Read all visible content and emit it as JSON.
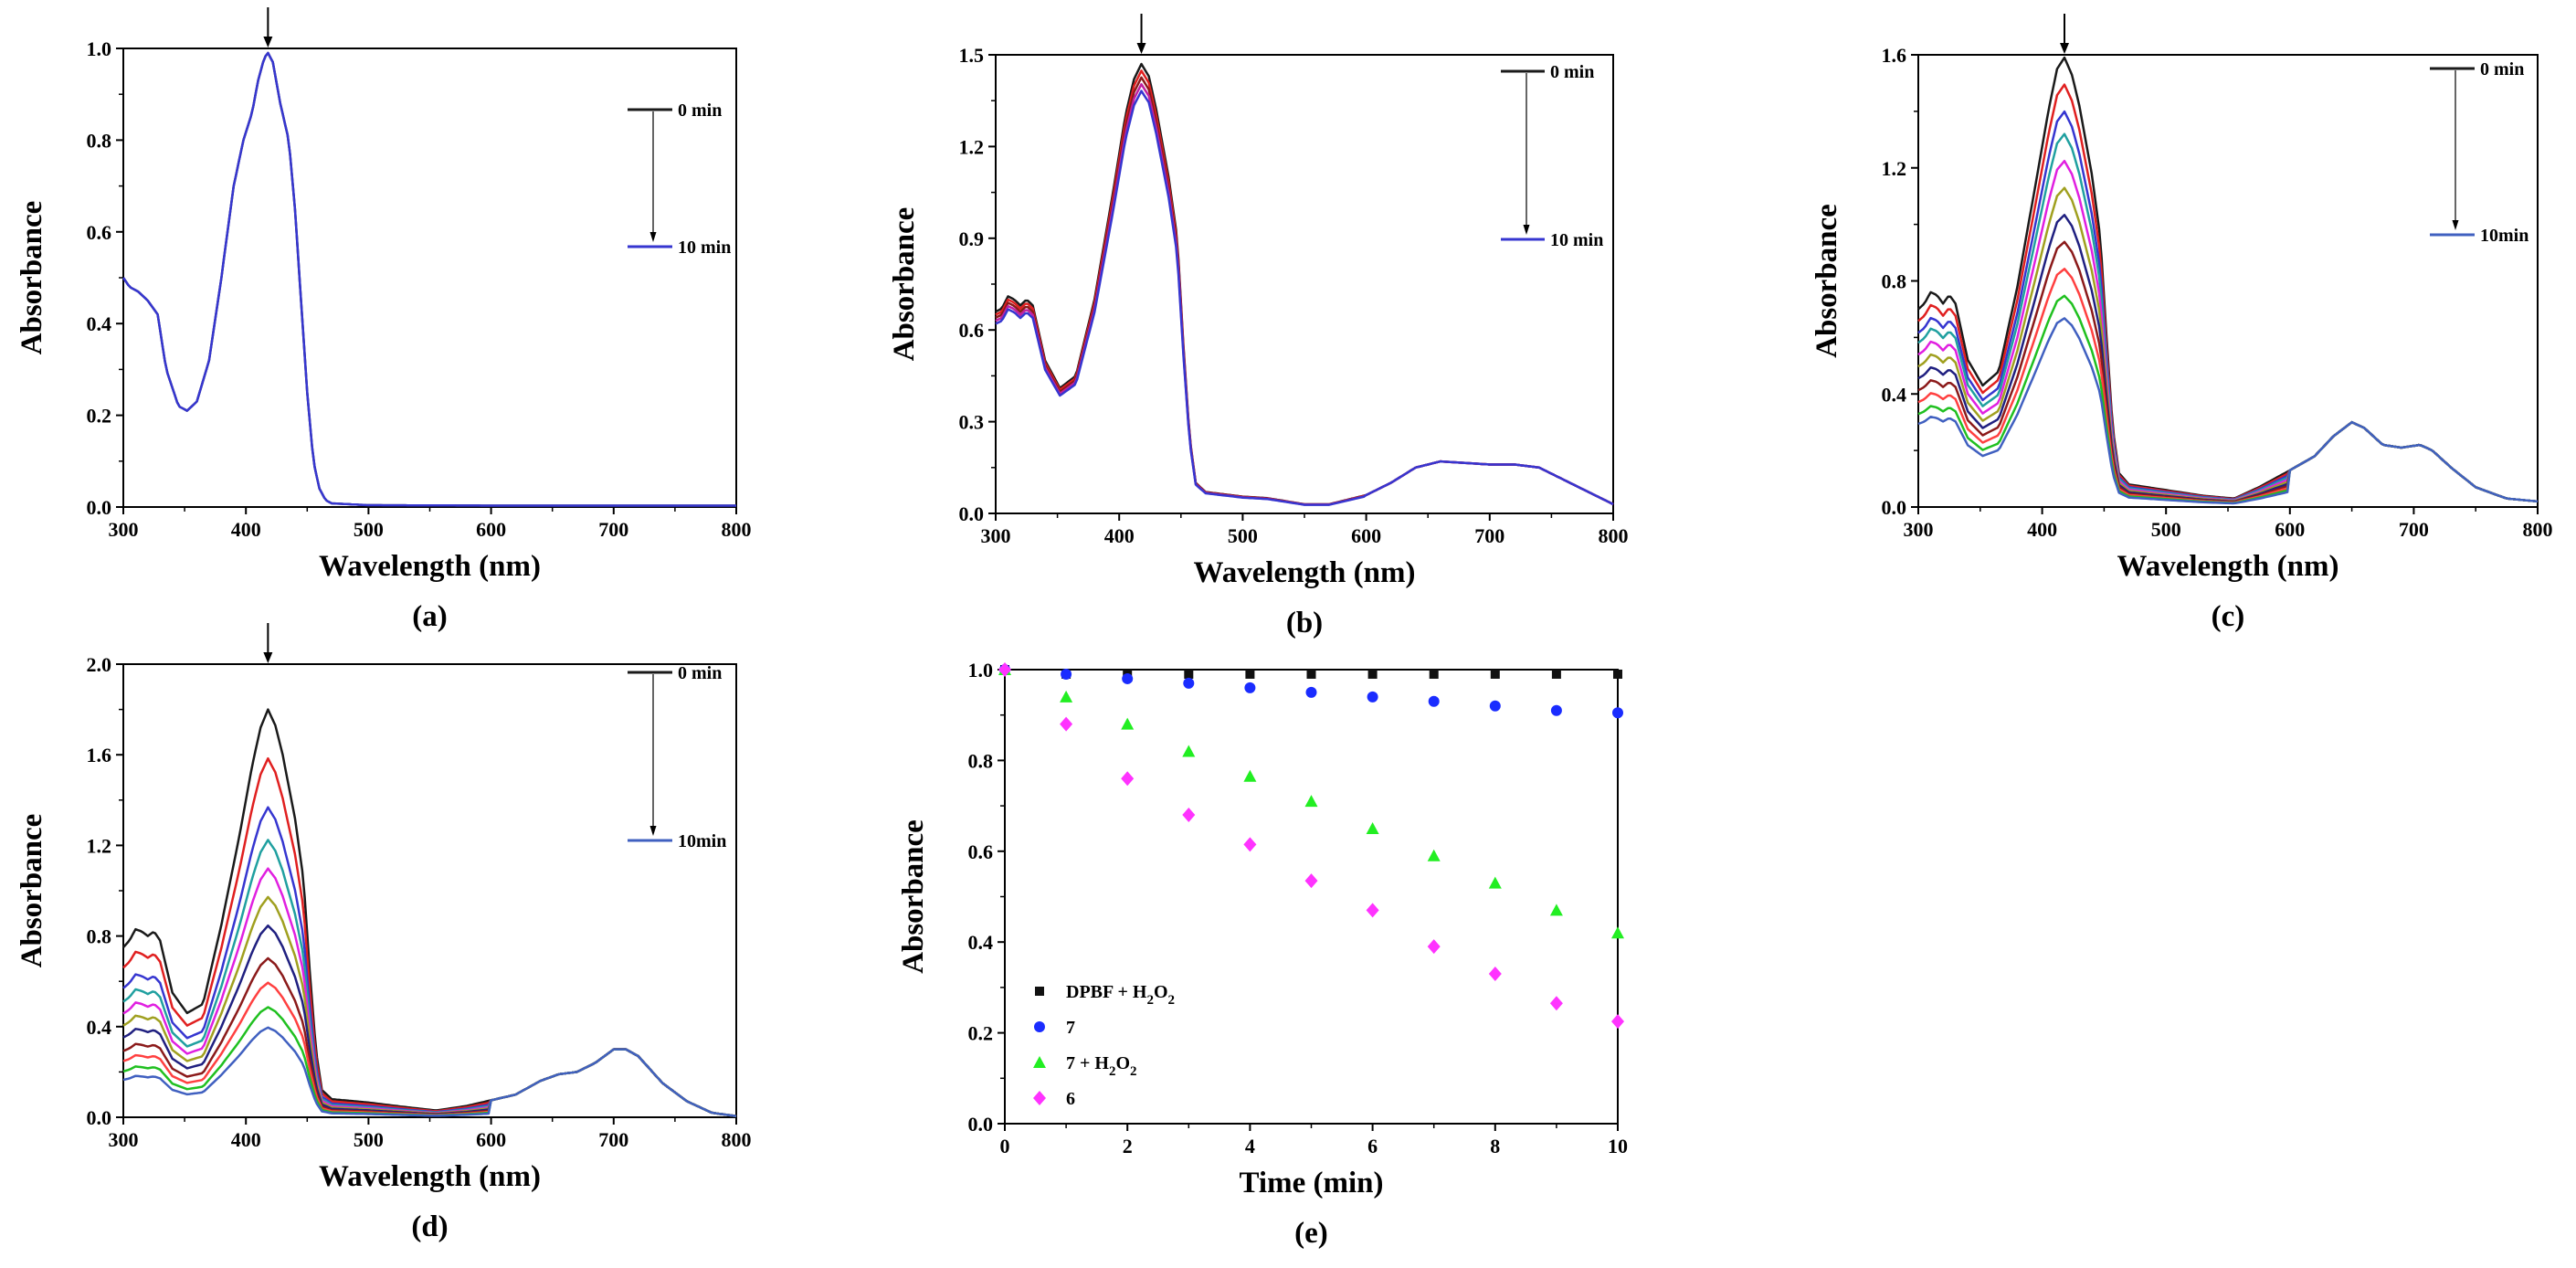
{
  "figure": {
    "panel_labels": [
      "(a)",
      "(b)",
      "(c)",
      "(d)",
      "(e)"
    ]
  },
  "chart_data": [
    {
      "id": "a",
      "type": "line",
      "panel_label": "(a)",
      "xlabel": "Wavelength (nm)",
      "ylabel": "Absorbance",
      "xlim": [
        300,
        800
      ],
      "ylim": [
        0,
        1.0
      ],
      "xticks": [
        300,
        400,
        500,
        600,
        700,
        800
      ],
      "yticks": [
        0.0,
        0.2,
        0.4,
        0.6,
        0.8,
        1.0
      ],
      "ytick_decimals": 1,
      "peak_arrow_x": 418,
      "legend": {
        "start_label": "0 min",
        "end_label": "10 min"
      },
      "series_colors": [
        "#1a1a1a",
        "#3636d0"
      ],
      "series_scales": [
        1.0,
        1.0
      ],
      "uv_profile": [
        [
          300,
          0.5
        ],
        [
          305,
          0.48
        ],
        [
          312,
          0.47
        ],
        [
          320,
          0.45
        ],
        [
          328,
          0.42
        ],
        [
          335,
          0.3
        ],
        [
          345,
          0.22
        ],
        [
          352,
          0.21
        ],
        [
          360,
          0.23
        ],
        [
          370,
          0.32
        ],
        [
          380,
          0.5
        ],
        [
          390,
          0.7
        ],
        [
          398,
          0.8
        ],
        [
          405,
          0.86
        ],
        [
          410,
          0.93
        ],
        [
          415,
          0.98
        ],
        [
          418,
          0.99
        ],
        [
          422,
          0.97
        ],
        [
          428,
          0.88
        ],
        [
          435,
          0.8
        ],
        [
          440,
          0.65
        ],
        [
          445,
          0.45
        ],
        [
          450,
          0.25
        ],
        [
          455,
          0.1
        ],
        [
          460,
          0.04
        ],
        [
          465,
          0.015
        ],
        [
          470,
          0.008
        ],
        [
          500,
          0.004
        ],
        [
          600,
          0.003
        ]
      ],
      "q_profile": [
        [
          600,
          0.003
        ],
        [
          650,
          0.003
        ],
        [
          700,
          0.003
        ],
        [
          800,
          0.003
        ]
      ]
    },
    {
      "id": "b",
      "type": "line",
      "panel_label": "(b)",
      "xlabel": "Wavelength (nm)",
      "ylabel": "Absorbance",
      "xlim": [
        300,
        800
      ],
      "ylim": [
        0,
        1.5
      ],
      "xticks": [
        300,
        400,
        500,
        600,
        700,
        800
      ],
      "yticks": [
        0.0,
        0.3,
        0.6,
        0.9,
        1.2,
        1.5
      ],
      "ytick_decimals": 1,
      "peak_arrow_x": 418,
      "legend": {
        "start_label": "0 min",
        "end_label": "10 min"
      },
      "series_colors": [
        "#1a1a1a",
        "#e02020",
        "#8b1a1a",
        "#c020a0",
        "#3636d0"
      ],
      "series_scales": [
        1.0,
        0.985,
        0.97,
        0.955,
        0.94
      ],
      "uv_profile": [
        [
          300,
          0.66
        ],
        [
          305,
          0.67
        ],
        [
          310,
          0.71
        ],
        [
          315,
          0.7
        ],
        [
          320,
          0.68
        ],
        [
          325,
          0.7
        ],
        [
          330,
          0.68
        ],
        [
          340,
          0.5
        ],
        [
          352,
          0.41
        ],
        [
          365,
          0.45
        ],
        [
          380,
          0.7
        ],
        [
          395,
          1.05
        ],
        [
          405,
          1.3
        ],
        [
          412,
          1.42
        ],
        [
          418,
          1.47
        ],
        [
          424,
          1.43
        ],
        [
          430,
          1.32
        ],
        [
          440,
          1.1
        ],
        [
          447,
          0.9
        ],
        [
          452,
          0.55
        ],
        [
          457,
          0.25
        ],
        [
          462,
          0.1
        ],
        [
          470,
          0.07
        ],
        [
          500,
          0.055
        ],
        [
          520,
          0.05
        ],
        [
          550,
          0.03
        ],
        [
          570,
          0.03
        ],
        [
          600,
          0.06
        ]
      ],
      "q_profile": [
        [
          600,
          0.06
        ],
        [
          620,
          0.1
        ],
        [
          640,
          0.15
        ],
        [
          660,
          0.17
        ],
        [
          680,
          0.165
        ],
        [
          700,
          0.16
        ],
        [
          720,
          0.16
        ],
        [
          740,
          0.15
        ],
        [
          760,
          0.11
        ],
        [
          780,
          0.07
        ],
        [
          800,
          0.03
        ]
      ]
    },
    {
      "id": "c",
      "type": "line",
      "panel_label": "(c)",
      "xlabel": "Wavelength (nm)",
      "ylabel": "Absorbance",
      "xlim": [
        300,
        800
      ],
      "ylim": [
        0,
        1.6
      ],
      "xticks": [
        300,
        400,
        500,
        600,
        700,
        800
      ],
      "yticks": [
        0.0,
        0.4,
        0.8,
        1.2,
        1.6
      ],
      "ytick_decimals": 1,
      "peak_arrow_x": 418,
      "legend": {
        "start_label": "0 min",
        "end_label": "10min"
      },
      "series_colors": [
        "#1a1a1a",
        "#e02020",
        "#3636d0",
        "#20a0a0",
        "#e020e0",
        "#a0a020",
        "#202080",
        "#8b1a1a",
        "#ff4040",
        "#20c020",
        "#4060c0"
      ],
      "series_scales": [
        1.0,
        0.94,
        0.88,
        0.83,
        0.77,
        0.71,
        0.65,
        0.59,
        0.53,
        0.47,
        0.42
      ],
      "uv_profile": [
        [
          300,
          0.7
        ],
        [
          305,
          0.72
        ],
        [
          310,
          0.76
        ],
        [
          315,
          0.75
        ],
        [
          320,
          0.72
        ],
        [
          325,
          0.75
        ],
        [
          330,
          0.72
        ],
        [
          340,
          0.52
        ],
        [
          352,
          0.43
        ],
        [
          365,
          0.48
        ],
        [
          380,
          0.78
        ],
        [
          395,
          1.15
        ],
        [
          405,
          1.4
        ],
        [
          412,
          1.55
        ],
        [
          418,
          1.59
        ],
        [
          424,
          1.53
        ],
        [
          430,
          1.42
        ],
        [
          440,
          1.18
        ],
        [
          447,
          0.95
        ],
        [
          452,
          0.6
        ],
        [
          457,
          0.28
        ],
        [
          462,
          0.12
        ],
        [
          470,
          0.08
        ],
        [
          500,
          0.06
        ],
        [
          530,
          0.04
        ],
        [
          555,
          0.03
        ],
        [
          575,
          0.07
        ],
        [
          600,
          0.13
        ]
      ],
      "q_profile": [
        [
          600,
          0.13
        ],
        [
          620,
          0.18
        ],
        [
          635,
          0.25
        ],
        [
          650,
          0.3
        ],
        [
          660,
          0.28
        ],
        [
          675,
          0.22
        ],
        [
          690,
          0.21
        ],
        [
          705,
          0.22
        ],
        [
          715,
          0.2
        ],
        [
          730,
          0.14
        ],
        [
          750,
          0.07
        ],
        [
          775,
          0.03
        ],
        [
          800,
          0.02
        ]
      ]
    },
    {
      "id": "d",
      "type": "line",
      "panel_label": "(d)",
      "xlabel": "Wavelength (nm)",
      "ylabel": "Absorbance",
      "xlim": [
        300,
        800
      ],
      "ylim": [
        0,
        2.0
      ],
      "xticks": [
        300,
        400,
        500,
        600,
        700,
        800
      ],
      "yticks": [
        0.0,
        0.4,
        0.8,
        1.2,
        1.6,
        2.0
      ],
      "ytick_decimals": 1,
      "peak_arrow_x": 418,
      "legend": {
        "start_label": "0 min",
        "end_label": "10min"
      },
      "series_colors": [
        "#1a1a1a",
        "#e02020",
        "#3636d0",
        "#20a0a0",
        "#e020e0",
        "#a0a020",
        "#202080",
        "#8b1a1a",
        "#ff4040",
        "#20c020",
        "#4060c0"
      ],
      "series_scales": [
        1.0,
        0.88,
        0.76,
        0.68,
        0.61,
        0.54,
        0.47,
        0.39,
        0.33,
        0.27,
        0.22
      ],
      "uv_profile": [
        [
          300,
          0.75
        ],
        [
          305,
          0.78
        ],
        [
          310,
          0.83
        ],
        [
          315,
          0.82
        ],
        [
          320,
          0.8
        ],
        [
          325,
          0.82
        ],
        [
          330,
          0.78
        ],
        [
          340,
          0.55
        ],
        [
          352,
          0.46
        ],
        [
          365,
          0.5
        ],
        [
          380,
          0.85
        ],
        [
          395,
          1.25
        ],
        [
          405,
          1.55
        ],
        [
          412,
          1.72
        ],
        [
          418,
          1.8
        ],
        [
          424,
          1.73
        ],
        [
          430,
          1.6
        ],
        [
          440,
          1.32
        ],
        [
          447,
          1.05
        ],
        [
          452,
          0.65
        ],
        [
          457,
          0.3
        ],
        [
          462,
          0.12
        ],
        [
          470,
          0.08
        ],
        [
          500,
          0.065
        ],
        [
          530,
          0.045
        ],
        [
          555,
          0.03
        ],
        [
          580,
          0.05
        ],
        [
          600,
          0.075
        ]
      ],
      "q_profile": [
        [
          600,
          0.075
        ],
        [
          620,
          0.1
        ],
        [
          640,
          0.16
        ],
        [
          655,
          0.19
        ],
        [
          670,
          0.2
        ],
        [
          685,
          0.24
        ],
        [
          700,
          0.3
        ],
        [
          710,
          0.3
        ],
        [
          720,
          0.27
        ],
        [
          740,
          0.15
        ],
        [
          760,
          0.07
        ],
        [
          780,
          0.02
        ],
        [
          800,
          0.005
        ]
      ]
    },
    {
      "id": "e",
      "type": "scatter",
      "panel_label": "(e)",
      "xlabel": "Time (min)",
      "ylabel": "Absorbance",
      "xlim": [
        0,
        10
      ],
      "ylim": [
        0,
        1.0
      ],
      "xticks": [
        0,
        2,
        4,
        6,
        8,
        10
      ],
      "yticks": [
        0.0,
        0.2,
        0.4,
        0.6,
        0.8,
        1.0
      ],
      "ytick_decimals": 1,
      "legend_position": "bottom-left",
      "x": [
        0,
        1,
        2,
        3,
        4,
        5,
        6,
        7,
        8,
        9,
        10
      ],
      "series": [
        {
          "name": "DPBF + H",
          "sub1": "2",
          "mid": "O",
          "sub2": "2",
          "marker": "square",
          "color": "#111111",
          "values": [
            1.0,
            0.99,
            0.99,
            0.99,
            0.99,
            0.99,
            0.99,
            0.99,
            0.99,
            0.99,
            0.99
          ]
        },
        {
          "name": "7",
          "sub1": "",
          "mid": "",
          "sub2": "",
          "marker": "circle",
          "color": "#1a2cff",
          "values": [
            1.0,
            0.99,
            0.98,
            0.97,
            0.96,
            0.95,
            0.94,
            0.93,
            0.92,
            0.91,
            0.905
          ]
        },
        {
          "name": "7 + H",
          "sub1": "2",
          "mid": "O",
          "sub2": "2",
          "marker": "triangle",
          "color": "#22ee22",
          "values": [
            1.0,
            0.94,
            0.88,
            0.82,
            0.765,
            0.71,
            0.65,
            0.59,
            0.53,
            0.47,
            0.42
          ]
        },
        {
          "name": "6",
          "sub1": "",
          "mid": "",
          "sub2": "",
          "marker": "diamond",
          "color": "#ff33ff",
          "values": [
            1.0,
            0.88,
            0.76,
            0.68,
            0.615,
            0.535,
            0.47,
            0.39,
            0.33,
            0.265,
            0.225
          ]
        }
      ]
    }
  ]
}
